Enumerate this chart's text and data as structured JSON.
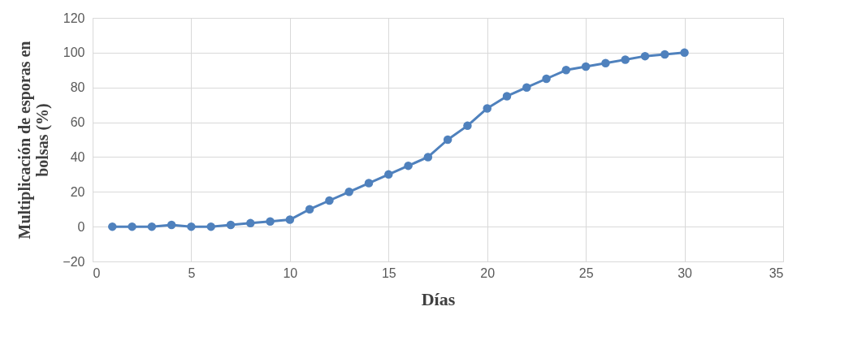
{
  "chart_data": {
    "type": "line",
    "xlabel": "Días",
    "ylabel": "Multiplicación de esporas en bolsas (%)",
    "x": [
      1,
      2,
      3,
      4,
      5,
      6,
      7,
      8,
      9,
      10,
      11,
      12,
      13,
      14,
      15,
      16,
      17,
      18,
      19,
      20,
      21,
      22,
      23,
      24,
      25,
      26,
      27,
      28,
      29,
      30
    ],
    "series": [
      {
        "color": "#4f81bd",
        "values": [
          0,
          0,
          0,
          1,
          0,
          0,
          1,
          2,
          3,
          4,
          10,
          15,
          20,
          25,
          30,
          35,
          40,
          50,
          58,
          68,
          75,
          80,
          85,
          90,
          92,
          94,
          96,
          98,
          99,
          100
        ]
      }
    ],
    "xlim": [
      0,
      35
    ],
    "xticks": [
      0,
      5,
      10,
      15,
      20,
      25,
      30,
      35
    ],
    "ylim": [
      -20,
      120
    ],
    "yticks": [
      -20,
      0,
      20,
      40,
      60,
      80,
      100,
      120
    ],
    "grid": true,
    "marker": "circle",
    "line_style": "solid"
  }
}
